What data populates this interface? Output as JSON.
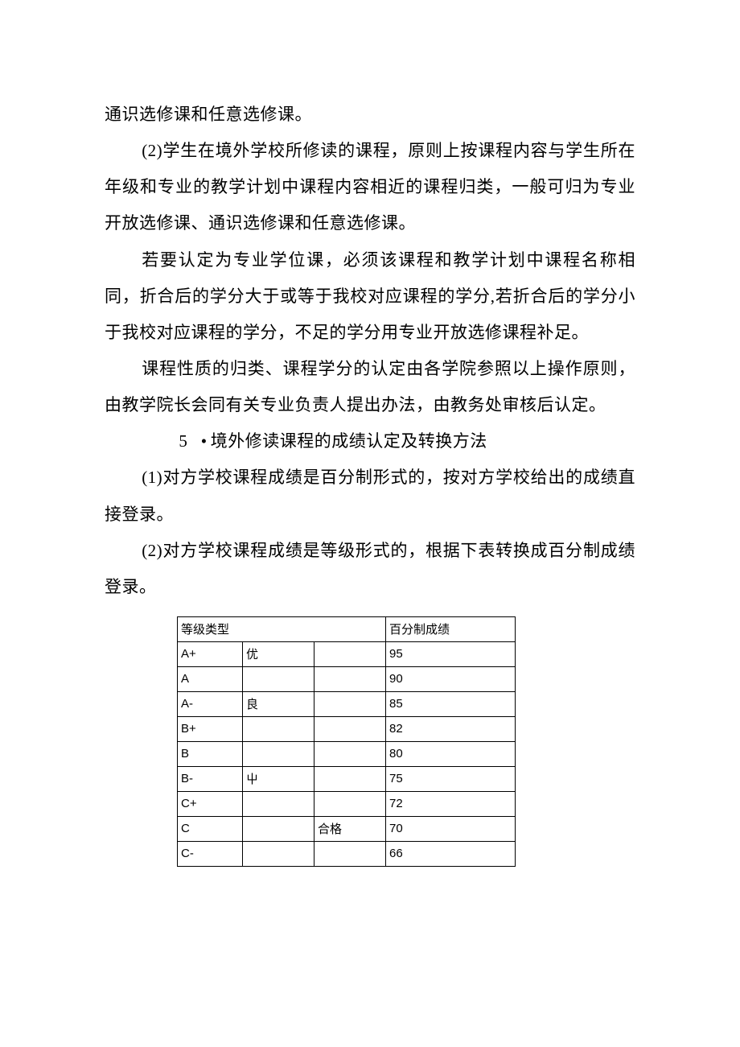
{
  "paragraphs": {
    "p1": "通识选修课和任意选修课。",
    "p2": "(2)学生在境外学校所修读的课程，原则上按课程内容与学生所在年级和专业的教学计划中课程内容相近的课程归类，一般可归为专业开放选修课、通识选修课和任意选修课。",
    "p3": "若要认定为专业学位课，必须该课程和教学计划中课程名称相同，折合后的学分大于或等于我校对应课程的学分,若折合后的学分小于我校对应课程的学分，不足的学分用专业开放选修课程补足。",
    "p4": "课程性质的归类、课程学分的认定由各学院参照以上操作原则，由教学院长会同有关专业负责人提出办法，由教务处审核后认定。",
    "section5_num": "5",
    "section5_title": "境外修读课程的成绩认定及转换方法",
    "p5": "(1)对方学校课程成绩是百分制形式的，按对方学校给出的成绩直接登录。",
    "p6": "(2)对方学校课程成绩是等级形式的，根据下表转换成百分制成绩登录。"
  },
  "table": {
    "header": {
      "left": "等级类型",
      "right": "百分制成绩"
    },
    "rows": [
      {
        "a": "A+",
        "b": "优",
        "c": "",
        "d": "95"
      },
      {
        "a": "A",
        "b": "",
        "c": "",
        "d": "90"
      },
      {
        "a": "A-",
        "b": "良",
        "c": "",
        "d": "85"
      },
      {
        "a": "B+",
        "b": "",
        "c": "",
        "d": "82"
      },
      {
        "a": "B",
        "b": "",
        "c": "",
        "d": "80"
      },
      {
        "a": "B-",
        "b": "屮",
        "c": "",
        "d": "75"
      },
      {
        "a": "C+",
        "b": "",
        "c": "",
        "d": "72"
      },
      {
        "a": "C",
        "b": "",
        "c": "合格",
        "d": "70"
      },
      {
        "a": "C-",
        "b": "",
        "c": "",
        "d": "66"
      }
    ]
  },
  "colors": {
    "text": "#000000",
    "background": "#ffffff",
    "border": "#000000"
  }
}
